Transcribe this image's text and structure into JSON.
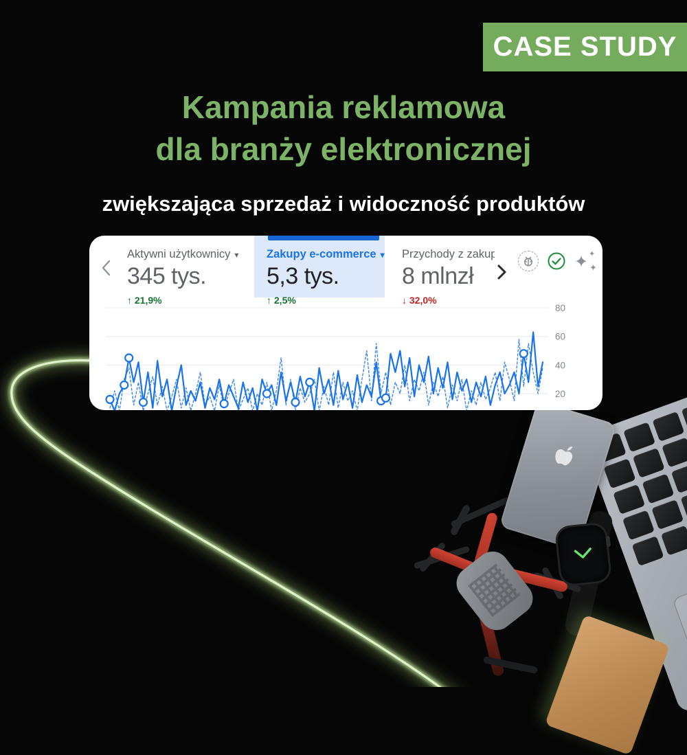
{
  "badge": {
    "label": "CASE STUDY",
    "bg_color": "#75ab5c"
  },
  "heading": {
    "line1": "Kampania reklamowa",
    "line2": "dla branży elektronicznej",
    "color": "#7db366"
  },
  "subheading": "zwiększająca sprzedaż i widoczność produktów",
  "icons": {
    "caret_down": "▾",
    "arrow_up": "↑",
    "arrow_down": "↓",
    "sparkle_large": "✦",
    "sparkle_small": "✦"
  },
  "analytics_card": {
    "metrics": [
      {
        "label": "Aktywni użytkownicy",
        "value": "345 tys.",
        "delta": "21,9%",
        "direction": "up",
        "selected": false
      },
      {
        "label": "Zakupy e-commerce",
        "value": "5,3 tys.",
        "delta": "2,5%",
        "direction": "up",
        "selected": true
      },
      {
        "label": "Przychody z zakupów",
        "value": "8 mlnzł",
        "delta": "32,0%",
        "direction": "down",
        "selected": false
      }
    ],
    "selected_tab_bg": "#dde9fb",
    "selected_tab_bar": "#1966d2",
    "accent_blue": "#1a73e8",
    "delta_up_color": "#137333",
    "delta_down_color": "#c5221f"
  },
  "chart_data": {
    "type": "line",
    "title": "",
    "xlabel": "",
    "ylabel": "",
    "yticks": [
      20,
      40,
      60,
      80
    ],
    "ylim": [
      0,
      85
    ],
    "grid": true,
    "legend_position": "none",
    "line_color": "#1a73e8",
    "note": "x axis labels cropped out of view; solid = selected metric, dashed = comparison line",
    "series": [
      {
        "name": "solid",
        "style": "solid",
        "values": [
          16,
          8,
          20,
          26,
          45,
          28,
          42,
          14,
          35,
          10,
          43,
          18,
          30,
          8,
          25,
          40,
          12,
          22,
          15,
          28,
          10,
          24,
          16,
          30,
          13,
          26,
          18,
          10,
          28,
          14,
          24,
          8,
          30,
          20,
          26,
          12,
          35,
          15,
          28,
          14,
          32,
          18,
          28,
          8,
          38,
          20,
          30,
          12,
          36,
          16,
          28,
          10,
          33,
          14,
          26,
          18,
          42,
          15,
          17,
          48,
          35,
          50,
          25,
          45,
          18,
          40,
          28,
          46,
          20,
          38,
          24,
          42,
          16,
          35,
          22,
          30,
          14,
          28,
          18,
          32,
          12,
          26,
          35,
          20,
          26,
          35,
          20,
          48,
          28,
          63,
          25,
          42
        ]
      },
      {
        "name": "dashed",
        "style": "dashed",
        "values": [
          10,
          22,
          8,
          30,
          38,
          12,
          28,
          8,
          20,
          32,
          12,
          25,
          8,
          18,
          30,
          10,
          24,
          8,
          20,
          35,
          12,
          18,
          8,
          26,
          10,
          20,
          30,
          8,
          16,
          24,
          8,
          20,
          12,
          28,
          8,
          22,
          45,
          12,
          30,
          8,
          24,
          14,
          20,
          30,
          8,
          25,
          12,
          35,
          10,
          28,
          15,
          22,
          8,
          30,
          50,
          15,
          55,
          20,
          35,
          12,
          28,
          20,
          40,
          15,
          30,
          22,
          35,
          12,
          28,
          18,
          32,
          10,
          26,
          15,
          30,
          8,
          22,
          12,
          28,
          16,
          24,
          35,
          15,
          42,
          30,
          15,
          58,
          25,
          55,
          35,
          20,
          38
        ]
      }
    ],
    "markers": [
      0,
      3,
      4,
      7,
      24,
      33,
      39,
      42,
      57,
      58,
      87
    ]
  },
  "photo": {
    "devices": [
      "smartphone",
      "laptop-keyboard",
      "smartwatch",
      "drone",
      "notebook"
    ]
  }
}
